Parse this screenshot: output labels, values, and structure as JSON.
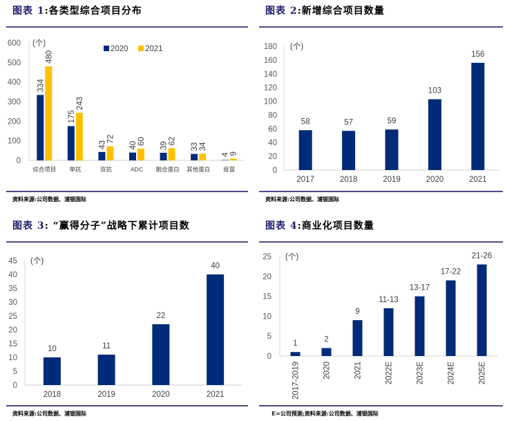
{
  "colors": {
    "navy": "#002B78",
    "gold": "#FFC000",
    "axis": "#D9D9D9",
    "tick": "#595959",
    "rule": "#4B4A8C",
    "vaccine2020": "#8497B0"
  },
  "chart_data": [
    {
      "type": "bar",
      "title_prefix": "图表",
      "title_num": "1",
      "title_text": ":各类型综合项目分布",
      "unit": "(个)",
      "categories": [
        "综合项目",
        "单抗",
        "双抗",
        "ADC",
        "融合蛋白",
        "其他蛋白",
        "疫苗"
      ],
      "series": [
        {
          "name": "2020",
          "values": [
            334,
            175,
            43,
            40,
            39,
            33,
            4
          ],
          "labels": [
            "334",
            "175",
            "43",
            "40",
            "39",
            "33",
            "4"
          ]
        },
        {
          "name": "2021",
          "values": [
            480,
            243,
            72,
            60,
            62,
            34,
            9
          ],
          "labels": [
            "480",
            "243",
            "72",
            "60",
            "62",
            "34",
            "9"
          ]
        }
      ],
      "ylim": [
        0,
        600
      ],
      "yticks": [
        "0",
        "100",
        "200",
        "300",
        "400",
        "500",
        "600"
      ],
      "legend_position": "top",
      "source": "资料来源:公司数据、浦银国际"
    },
    {
      "type": "bar",
      "title_prefix": "图表",
      "title_num": "2",
      "title_text": ":新增综合项目数量",
      "unit": "(个)",
      "categories": [
        "2017",
        "2018",
        "2019",
        "2020",
        "2021"
      ],
      "values": [
        58,
        57,
        59,
        103,
        156
      ],
      "labels": [
        "58",
        "57",
        "59",
        "103",
        "156"
      ],
      "ylim": [
        0,
        180
      ],
      "yticks": [
        "0",
        "20",
        "40",
        "60",
        "80",
        "100",
        "120",
        "140",
        "160",
        "180"
      ],
      "source": "资料来源:公司数据、浦银国际"
    },
    {
      "type": "bar",
      "title_prefix": "图表",
      "title_num": "3",
      "title_text": ": “赢得分子”战略下累计项目数",
      "unit": "(个)",
      "categories": [
        "2018",
        "2019",
        "2020",
        "2021"
      ],
      "values": [
        10,
        11,
        22,
        40
      ],
      "labels": [
        "10",
        "11",
        "22",
        "40"
      ],
      "ylim": [
        0,
        45
      ],
      "yticks": [
        "0",
        "5",
        "10",
        "15",
        "20",
        "25",
        "30",
        "35",
        "40",
        "45"
      ],
      "source": "资料来源:公司数据、浦银国际"
    },
    {
      "type": "bar",
      "title_prefix": "图表",
      "title_num": "4",
      "title_text": ":商业化项目数量",
      "unit": "(个)",
      "categories": [
        "2017-2019",
        "2020",
        "2021",
        "2022E",
        "2023E",
        "2024E",
        "2025E"
      ],
      "values": [
        1,
        2,
        9,
        12,
        15,
        19,
        23
      ],
      "labels": [
        "1",
        "2",
        "9",
        "11-13",
        "13-17",
        "17-22",
        "21-26"
      ],
      "ylim": [
        0,
        25
      ],
      "yticks": [
        "0",
        "5",
        "10",
        "15",
        "20",
        "25"
      ],
      "source": "E=公司预测;资料来源:公司数据、浦银国际"
    }
  ]
}
